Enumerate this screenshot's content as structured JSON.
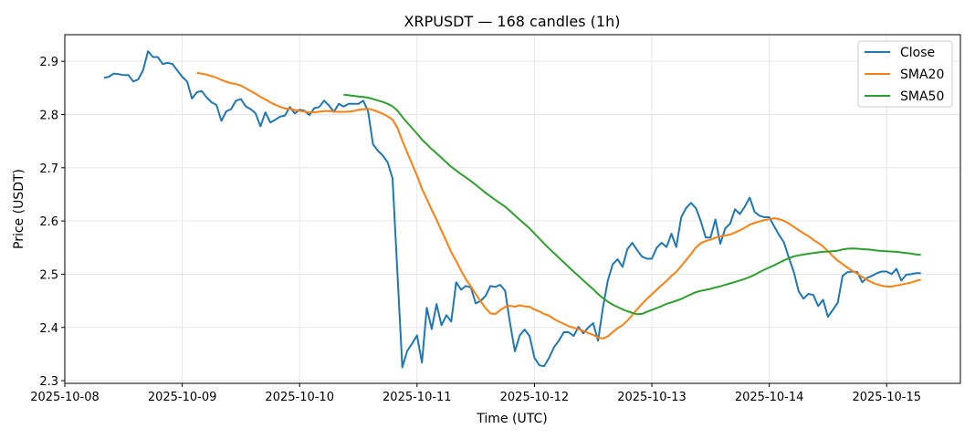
{
  "chart_data": {
    "type": "line",
    "title": "XRPUSDT — 168 candles (1h)",
    "xlabel": "Time (UTC)",
    "ylabel": "Price (USDT)",
    "start_time": "2025-10-08 08:00",
    "interval_hours": 1,
    "xlim_days": [
      0,
      7.628
    ],
    "ylim": [
      2.295,
      2.95
    ],
    "grid": true,
    "legend_position": "top-right",
    "x_ticks": [
      "2025-10-08",
      "2025-10-09",
      "2025-10-10",
      "2025-10-11",
      "2025-10-12",
      "2025-10-13",
      "2025-10-14",
      "2025-10-15"
    ],
    "y_ticks": [
      2.3,
      2.4,
      2.5,
      2.6,
      2.7,
      2.8,
      2.9
    ],
    "series": [
      {
        "name": "Close",
        "color": "#1f77b4"
      },
      {
        "name": "SMA20",
        "color": "#ff7f0e",
        "window": 20
      },
      {
        "name": "SMA50",
        "color": "#2ca02c",
        "window": 50
      }
    ],
    "close": [
      2.869,
      2.871,
      2.877,
      2.876,
      2.874,
      2.874,
      2.862,
      2.866,
      2.883,
      2.919,
      2.908,
      2.908,
      2.895,
      2.897,
      2.895,
      2.883,
      2.871,
      2.862,
      2.83,
      2.842,
      2.844,
      2.832,
      2.823,
      2.818,
      2.788,
      2.806,
      2.81,
      2.826,
      2.829,
      2.815,
      2.81,
      2.802,
      2.778,
      2.804,
      2.785,
      2.79,
      2.796,
      2.798,
      2.814,
      2.802,
      2.809,
      2.807,
      2.799,
      2.812,
      2.814,
      2.826,
      2.817,
      2.805,
      2.82,
      2.815,
      2.82,
      2.82,
      2.82,
      2.826,
      2.806,
      2.744,
      2.732,
      2.723,
      2.71,
      2.68,
      2.5,
      2.325,
      2.356,
      2.37,
      2.385,
      2.334,
      2.437,
      2.397,
      2.444,
      2.404,
      2.423,
      2.411,
      2.485,
      2.471,
      2.478,
      2.475,
      2.445,
      2.45,
      2.459,
      2.478,
      2.476,
      2.48,
      2.469,
      2.409,
      2.355,
      2.385,
      2.396,
      2.384,
      2.343,
      2.329,
      2.327,
      2.343,
      2.363,
      2.375,
      2.391,
      2.391,
      2.384,
      2.401,
      2.389,
      2.4,
      2.408,
      2.375,
      2.437,
      2.488,
      2.519,
      2.528,
      2.514,
      2.547,
      2.559,
      2.545,
      2.533,
      2.529,
      2.529,
      2.55,
      2.559,
      2.551,
      2.576,
      2.551,
      2.607,
      2.624,
      2.634,
      2.624,
      2.6,
      2.569,
      2.569,
      2.603,
      2.557,
      2.586,
      2.595,
      2.622,
      2.613,
      2.627,
      2.644,
      2.617,
      2.61,
      2.607,
      2.607,
      2.59,
      2.574,
      2.56,
      2.531,
      2.505,
      2.468,
      2.454,
      2.463,
      2.461,
      2.44,
      2.452,
      2.42,
      2.433,
      2.447,
      2.497,
      2.504,
      2.505,
      2.504,
      2.485,
      2.493,
      2.497,
      2.502,
      2.505,
      2.505,
      2.5,
      2.51,
      2.488,
      2.499,
      2.5,
      2.502,
      2.502
    ]
  }
}
